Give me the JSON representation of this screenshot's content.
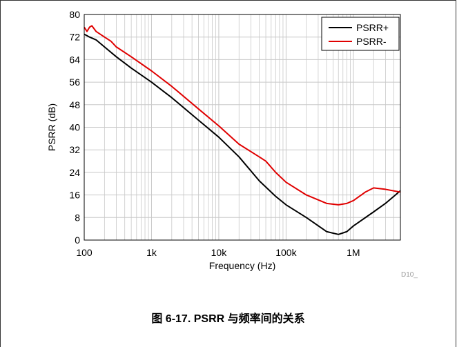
{
  "caption": "图 6-17. PSRR 与频率间的关系",
  "figure_id": "D10_",
  "colors": {
    "psrr_plus": "#000000",
    "psrr_minus": "#e00000",
    "grid": "#c8c8c8",
    "axis": "#000000"
  },
  "chart_data": {
    "type": "line",
    "title": "",
    "xlabel": "Frequency (Hz)",
    "ylabel": "PSRR (dB)",
    "xscale": "log",
    "xlim": [
      100,
      5000000
    ],
    "ylim": [
      0,
      80
    ],
    "xticks": [
      100,
      1000,
      10000,
      100000,
      1000000
    ],
    "xtick_labels": [
      "100",
      "1k",
      "10k",
      "100k",
      "1M"
    ],
    "yticks": [
      0,
      8,
      16,
      24,
      32,
      40,
      48,
      56,
      64,
      72,
      80
    ],
    "ytick_labels": [
      "0",
      "8",
      "16",
      "24",
      "32",
      "40",
      "48",
      "56",
      "64",
      "72",
      "80"
    ],
    "grid": true,
    "legend_position": "top-right",
    "series": [
      {
        "name": "PSRR+",
        "color": "#000000",
        "x": [
          100,
          120,
          150,
          200,
          300,
          500,
          1000,
          2000,
          5000,
          10000,
          20000,
          40000,
          70000,
          100000,
          200000,
          400000,
          600000,
          800000,
          1000000,
          2000000,
          3000000,
          5000000
        ],
        "y": [
          73,
          72,
          71,
          68.5,
          65,
          61,
          56,
          50.5,
          42.5,
          36.5,
          29.5,
          21,
          15.5,
          12.5,
          8,
          3,
          2,
          3,
          5,
          10,
          13,
          17.5
        ]
      },
      {
        "name": "PSRR-",
        "color": "#e00000",
        "x": [
          100,
          110,
          120,
          130,
          150,
          200,
          250,
          300,
          500,
          1000,
          2000,
          5000,
          10000,
          20000,
          40000,
          50000,
          70000,
          100000,
          200000,
          400000,
          600000,
          800000,
          1000000,
          1500000,
          2000000,
          3000000,
          5000000
        ],
        "y": [
          75.5,
          74,
          75.5,
          76,
          74,
          72,
          70.5,
          68.5,
          65,
          60,
          54.5,
          46.5,
          40.5,
          34,
          29.5,
          28,
          24,
          20.5,
          16,
          13,
          12.5,
          13,
          14,
          17,
          18.5,
          18,
          17
        ]
      }
    ]
  }
}
